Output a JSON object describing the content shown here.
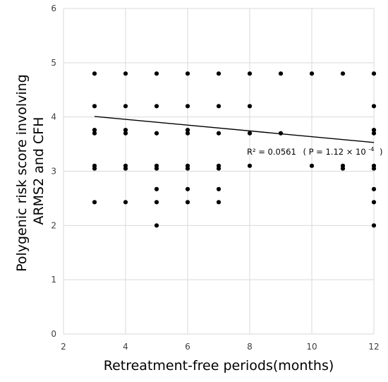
{
  "chart_data": {
    "type": "scatter",
    "xlabel": "Retreatment-free periods(months)",
    "ylabel_lines": [
      "Polygenic risk score involving",
      "ARMS2 and CFH"
    ],
    "xlim": [
      2,
      12
    ],
    "ylim": [
      0,
      6
    ],
    "x_ticks": [
      2,
      4,
      6,
      8,
      10,
      12
    ],
    "y_ticks": [
      0,
      1,
      2,
      3,
      4,
      5,
      6
    ],
    "grid": true,
    "series": [
      {
        "points": [
          [
            3,
            4.8
          ],
          [
            3,
            4.2
          ],
          [
            3,
            3.76
          ],
          [
            3,
            3.7
          ],
          [
            3,
            3.1
          ],
          [
            3,
            3.05
          ],
          [
            3,
            2.43
          ],
          [
            4,
            4.8
          ],
          [
            4,
            4.2
          ],
          [
            4,
            3.76
          ],
          [
            4,
            3.7
          ],
          [
            4,
            3.1
          ],
          [
            4,
            3.05
          ],
          [
            4,
            2.43
          ],
          [
            5,
            4.8
          ],
          [
            5,
            4.2
          ],
          [
            5,
            3.7
          ],
          [
            5,
            3.1
          ],
          [
            5,
            3.05
          ],
          [
            5,
            2.67
          ],
          [
            5,
            2.43
          ],
          [
            5,
            2.0
          ],
          [
            6,
            4.8
          ],
          [
            6,
            4.2
          ],
          [
            6,
            3.76
          ],
          [
            6,
            3.7
          ],
          [
            6,
            3.1
          ],
          [
            6,
            3.05
          ],
          [
            6,
            2.67
          ],
          [
            6,
            2.43
          ],
          [
            7,
            4.8
          ],
          [
            7,
            4.2
          ],
          [
            7,
            3.7
          ],
          [
            7,
            3.1
          ],
          [
            7,
            3.05
          ],
          [
            7,
            2.67
          ],
          [
            7,
            2.43
          ],
          [
            8,
            4.8
          ],
          [
            8,
            4.2
          ],
          [
            8,
            3.7
          ],
          [
            8,
            3.1
          ],
          [
            9,
            4.8
          ],
          [
            9,
            3.7
          ],
          [
            10,
            4.8
          ],
          [
            10,
            3.1
          ],
          [
            11,
            4.8
          ],
          [
            11,
            3.1
          ],
          [
            11,
            3.05
          ],
          [
            12,
            4.8
          ],
          [
            12,
            4.2
          ],
          [
            12,
            3.76
          ],
          [
            12,
            3.7
          ],
          [
            12,
            3.1
          ],
          [
            12,
            3.05
          ],
          [
            12,
            2.67
          ],
          [
            12,
            2.43
          ],
          [
            12,
            2.0
          ]
        ]
      }
    ],
    "trendline": {
      "x": [
        3,
        12
      ],
      "y": [
        4.01,
        3.53
      ]
    },
    "annotation": {
      "r2_label": "R² = 0.0561",
      "p_prefix": "( P = 1.12 × 10",
      "p_exponent": "-4",
      "p_suffix": ")"
    },
    "colors": {
      "points": "#000000",
      "grid": "#d9d9d9",
      "trendline": "#000000"
    }
  }
}
